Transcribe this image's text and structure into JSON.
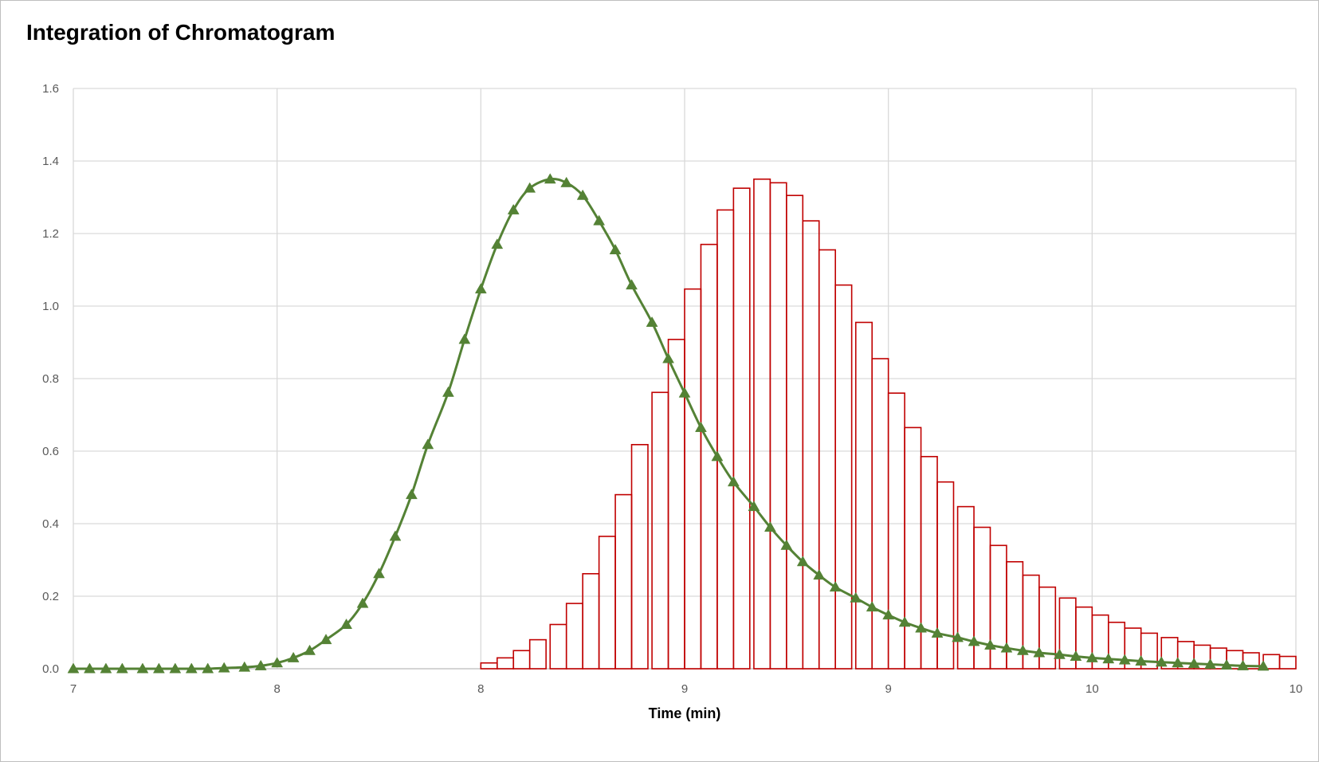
{
  "chart_data": {
    "type": "line",
    "title": "Integration of Chromatogram",
    "xlabel": "Time (min)",
    "ylabel": "",
    "xlim": [
      7,
      10
    ],
    "ylim": [
      0,
      1.6
    ],
    "x_tick_labels": [
      "7",
      "8",
      "8",
      "9",
      "9",
      "10",
      "10"
    ],
    "y_tick_labels": [
      "0.0",
      "0.2",
      "0.4",
      "0.6",
      "0.8",
      "1.0",
      "1.2",
      "1.4",
      "1.6"
    ],
    "grid": true,
    "legend": "none",
    "colors": {
      "curve": "#548235",
      "markers": "#548235",
      "bars": "#c00000",
      "grid": "#d9d9d9"
    },
    "series": [
      {
        "type": "line",
        "marker": "triangle",
        "x": [
          7.0,
          7.04,
          7.08,
          7.12,
          7.17,
          7.21,
          7.25,
          7.29,
          7.33,
          7.37,
          7.42,
          7.46,
          7.5,
          7.54,
          7.58,
          7.62,
          7.67,
          7.71,
          7.75,
          7.79,
          7.83,
          7.87,
          7.92,
          7.96,
          8.0,
          8.04,
          8.08,
          8.12,
          8.17,
          8.21,
          8.25,
          8.29,
          8.33,
          8.37,
          8.42,
          8.46,
          8.5,
          8.54,
          8.58,
          8.62,
          8.67,
          8.71,
          8.75,
          8.79,
          8.83,
          8.87,
          8.92,
          8.96,
          9.0,
          9.04,
          9.08,
          9.12,
          9.17,
          9.21,
          9.25,
          9.29,
          9.33,
          9.37,
          9.42,
          9.46,
          9.5,
          9.54,
          9.58,
          9.62,
          9.67,
          9.71,
          9.75,
          9.79,
          9.83,
          9.87,
          9.92
        ],
        "y": [
          0.0,
          0.0,
          0.0,
          0.0,
          0.0,
          0.0,
          0.0,
          0.0,
          0.0,
          0.002,
          0.004,
          0.008,
          0.016,
          0.03,
          0.05,
          0.08,
          0.122,
          0.18,
          0.262,
          0.365,
          0.48,
          0.618,
          0.762,
          0.908,
          1.047,
          1.17,
          1.265,
          1.325,
          1.35,
          1.34,
          1.305,
          1.235,
          1.155,
          1.058,
          0.955,
          0.855,
          0.76,
          0.665,
          0.585,
          0.515,
          0.447,
          0.39,
          0.34,
          0.295,
          0.258,
          0.225,
          0.195,
          0.17,
          0.148,
          0.128,
          0.112,
          0.098,
          0.086,
          0.075,
          0.065,
          0.057,
          0.05,
          0.044,
          0.039,
          0.034,
          0.03,
          0.027,
          0.024,
          0.021,
          0.018,
          0.016,
          0.014,
          0.012,
          0.01,
          0.008,
          0.007
        ]
      },
      {
        "type": "bar",
        "name": "",
        "x_start": [
          8.0,
          8.04,
          8.08,
          8.12,
          8.17,
          8.21,
          8.25,
          8.29,
          8.33,
          8.37,
          8.42,
          8.46,
          8.5,
          8.54,
          8.58,
          8.62,
          8.67,
          8.71,
          8.75,
          8.79,
          8.83,
          8.87,
          8.92,
          8.96,
          9.0,
          9.04,
          9.08,
          9.12,
          9.17,
          9.21,
          9.25,
          9.29,
          9.33,
          9.37,
          9.42,
          9.46,
          9.5,
          9.54,
          9.58,
          9.62,
          9.67,
          9.71,
          9.75,
          9.79,
          9.83,
          9.87,
          9.92,
          9.96
        ],
        "values": [
          0.016,
          0.03,
          0.05,
          0.08,
          0.122,
          0.18,
          0.262,
          0.365,
          0.48,
          0.618,
          0.762,
          0.908,
          1.047,
          1.17,
          1.265,
          1.325,
          1.35,
          1.34,
          1.305,
          1.235,
          1.155,
          1.058,
          0.955,
          0.855,
          0.76,
          0.665,
          0.585,
          0.515,
          0.447,
          0.39,
          0.34,
          0.295,
          0.258,
          0.225,
          0.195,
          0.17,
          0.148,
          0.128,
          0.112,
          0.098,
          0.086,
          0.075,
          0.065,
          0.057,
          0.05,
          0.044,
          0.039,
          0.034
        ]
      }
    ]
  }
}
